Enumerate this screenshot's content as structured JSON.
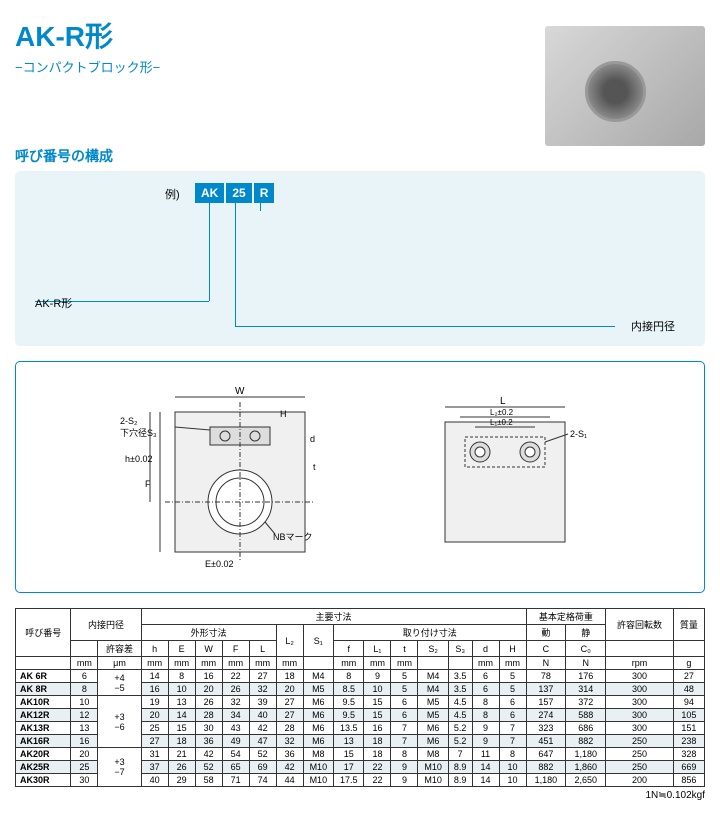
{
  "title": "AK-R形",
  "subtitle": "−コンパクトブロック形−",
  "section1": "呼び番号の構成",
  "example": "例)",
  "codes": [
    "AK",
    "25",
    "R"
  ],
  "akr_label": "AK-R形",
  "inner_label": "内接円径",
  "drawing": {
    "label1": "2-S₂",
    "label2": "下穴径S₃",
    "label3": "NBマーク",
    "label4": "2-S₁",
    "dims": {
      "W": "W",
      "H": "H",
      "h": "h±0.02",
      "F": "F",
      "E": "E±0.02",
      "L": "L",
      "L2": "L₂±0.2",
      "L1": "L₁±0.2",
      "t": "t",
      "d": "d"
    }
  },
  "table": {
    "header_groups": [
      "呼び番号",
      "内接円径",
      "主要寸法",
      "基本定格荷重",
      "許容回転数",
      "質量"
    ],
    "sub_groups": [
      "外形寸法",
      "取り付け寸法",
      "動",
      "静"
    ],
    "cols": [
      "",
      "内接円径",
      "許容差",
      "h",
      "E",
      "W",
      "F",
      "L",
      "L₂",
      "S₁",
      "f",
      "L₁",
      "t",
      "S₂",
      "S₃",
      "d",
      "H",
      "C",
      "C₀",
      "",
      "質量"
    ],
    "units": [
      "",
      "mm",
      "μm",
      "mm",
      "mm",
      "mm",
      "mm",
      "mm",
      "mm",
      "",
      "mm",
      "mm",
      "mm",
      "",
      "",
      "mm",
      "mm",
      "N",
      "N",
      "rpm",
      "g"
    ],
    "tolerance_groups": [
      {
        "val": "+4\n−5",
        "rows": 2
      },
      {
        "val": "+3\n−6",
        "rows": 4
      },
      {
        "val": "+3\n−7",
        "rows": 3
      }
    ],
    "rows": [
      [
        "AK 6R",
        "6",
        "14",
        "8",
        "16",
        "22",
        "27",
        "18",
        "M4",
        "8",
        "9",
        "5",
        "M4",
        "3.5",
        "6",
        "5",
        "78",
        "176",
        "300",
        "27"
      ],
      [
        "AK 8R",
        "8",
        "16",
        "10",
        "20",
        "26",
        "32",
        "20",
        "M5",
        "8.5",
        "10",
        "5",
        "M4",
        "3.5",
        "6",
        "5",
        "137",
        "314",
        "300",
        "48"
      ],
      [
        "AK10R",
        "10",
        "19",
        "13",
        "26",
        "32",
        "39",
        "27",
        "M6",
        "9.5",
        "15",
        "6",
        "M5",
        "4.5",
        "8",
        "6",
        "157",
        "372",
        "300",
        "94"
      ],
      [
        "AK12R",
        "12",
        "20",
        "14",
        "28",
        "34",
        "40",
        "27",
        "M6",
        "9.5",
        "15",
        "6",
        "M5",
        "4.5",
        "8",
        "6",
        "274",
        "588",
        "300",
        "105"
      ],
      [
        "AK13R",
        "13",
        "25",
        "15",
        "30",
        "43",
        "42",
        "28",
        "M6",
        "13.5",
        "16",
        "7",
        "M6",
        "5.2",
        "9",
        "7",
        "323",
        "686",
        "300",
        "151"
      ],
      [
        "AK16R",
        "16",
        "27",
        "18",
        "36",
        "49",
        "47",
        "32",
        "M6",
        "13",
        "18",
        "7",
        "M6",
        "5.2",
        "9",
        "7",
        "451",
        "882",
        "250",
        "238"
      ],
      [
        "AK20R",
        "20",
        "31",
        "21",
        "42",
        "54",
        "52",
        "36",
        "M8",
        "15",
        "18",
        "8",
        "M8",
        "7",
        "11",
        "8",
        "647",
        "1,180",
        "250",
        "328"
      ],
      [
        "AK25R",
        "25",
        "37",
        "26",
        "52",
        "65",
        "69",
        "42",
        "M10",
        "17",
        "22",
        "9",
        "M10",
        "8.9",
        "14",
        "10",
        "882",
        "1,860",
        "250",
        "669"
      ],
      [
        "AK30R",
        "30",
        "40",
        "29",
        "58",
        "71",
        "74",
        "44",
        "M10",
        "17.5",
        "22",
        "9",
        "M10",
        "8.9",
        "14",
        "10",
        "1,180",
        "2,650",
        "200",
        "856"
      ]
    ]
  },
  "footnote": "1N≒0.102kgf"
}
